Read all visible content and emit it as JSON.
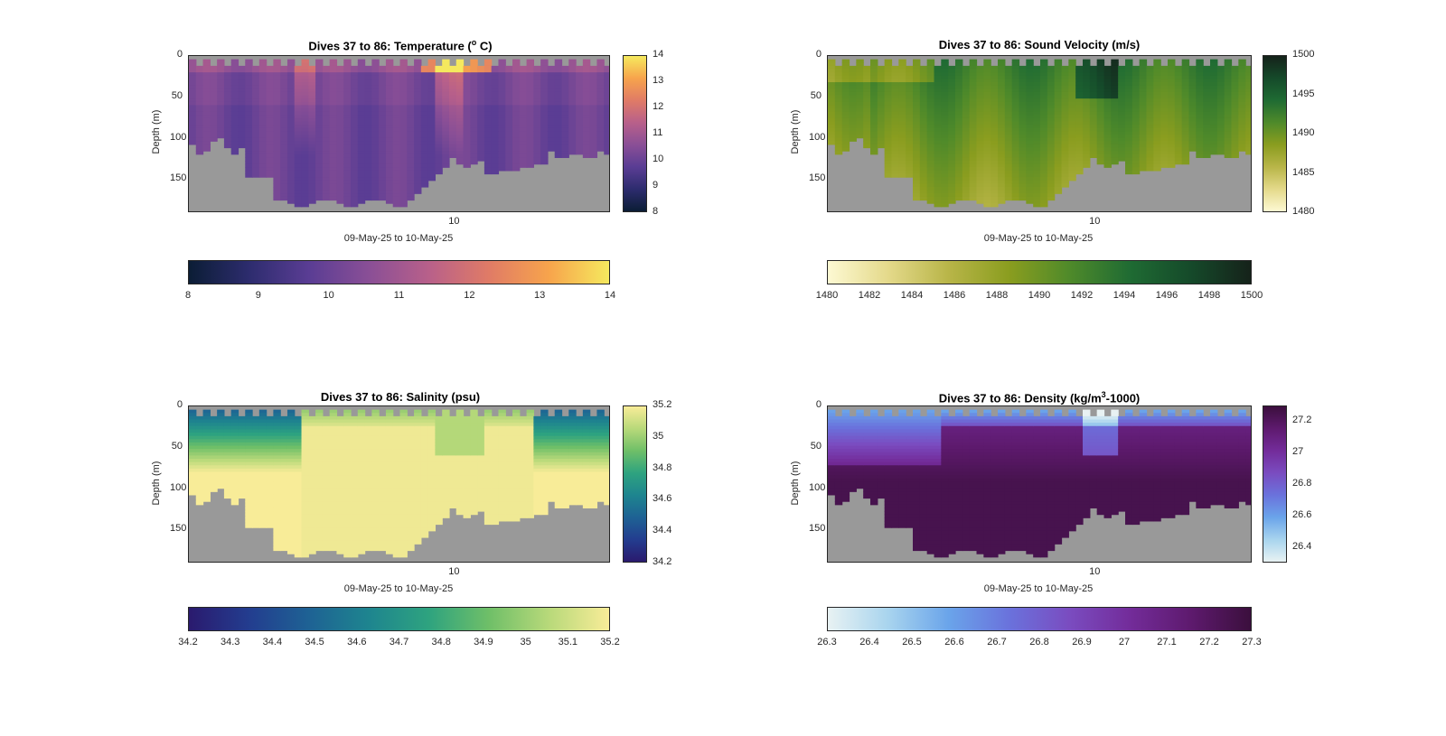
{
  "chart_data": [
    {
      "type": "heatmap",
      "title_prefix": "Dives 37 to 86: Temperature (",
      "title_sup": "o",
      "title_suffix": " C)",
      "ylabel": "Depth (m)",
      "xlabel": "09-May-25 to 10-May-25",
      "x_ticks": [
        "10"
      ],
      "y_ticks": [
        "0",
        "50",
        "100",
        "150"
      ],
      "ylim": [
        0,
        190
      ],
      "variable": "temperature",
      "clim": [
        8,
        14
      ],
      "colormap": [
        "#0b1d35",
        "#2d2c6e",
        "#5a3d94",
        "#8a4f96",
        "#b8608a",
        "#e07b66",
        "#f7a44c",
        "#f5e95e"
      ],
      "background": "#999999",
      "vertical_colorbar_ticks": [
        "14",
        "13",
        "12",
        "11",
        "10",
        "9",
        "8"
      ],
      "horizontal_colorbar_ticks": [
        "8",
        "9",
        "10",
        "11",
        "12",
        "13",
        "14"
      ]
    },
    {
      "type": "heatmap",
      "title_prefix": "Dives 37 to 86: Sound Velocity (m/s)",
      "title_sup": "",
      "title_suffix": "",
      "ylabel": "Depth (m)",
      "xlabel": "09-May-25 to 10-May-25",
      "x_ticks": [
        "10"
      ],
      "y_ticks": [
        "0",
        "50",
        "100",
        "150"
      ],
      "ylim": [
        0,
        190
      ],
      "variable": "sound_velocity",
      "clim": [
        1480,
        1500
      ],
      "colormap": [
        "#fdf9d3",
        "#e4d98a",
        "#b8b548",
        "#8a9d1f",
        "#4f8a2a",
        "#1f6b33",
        "#154a2a",
        "#15221a"
      ],
      "background": "#999999",
      "vertical_colorbar_ticks": [
        "1500",
        "1495",
        "1490",
        "1485",
        "1480"
      ],
      "horizontal_colorbar_ticks": [
        "1480",
        "1482",
        "1484",
        "1486",
        "1488",
        "1490",
        "1492",
        "1494",
        "1496",
        "1498",
        "1500"
      ]
    },
    {
      "type": "heatmap",
      "title_prefix": "Dives 37 to 86: Salinity (psu)",
      "title_sup": "",
      "title_suffix": "",
      "ylabel": "Depth (m)",
      "xlabel": "09-May-25 to 10-May-25",
      "x_ticks": [
        "10"
      ],
      "y_ticks": [
        "0",
        "50",
        "100",
        "150"
      ],
      "ylim": [
        0,
        190
      ],
      "variable": "salinity",
      "clim": [
        34.2,
        35.2
      ],
      "colormap": [
        "#2a1a6e",
        "#233d8f",
        "#1e6294",
        "#1e858f",
        "#2ea37f",
        "#6fbf68",
        "#b8d97a",
        "#f8ec98"
      ],
      "background": "#999999",
      "vertical_colorbar_ticks": [
        "35.2",
        "35",
        "34.8",
        "34.6",
        "34.4",
        "34.2"
      ],
      "horizontal_colorbar_ticks": [
        "34.2",
        "34.3",
        "34.4",
        "34.5",
        "34.6",
        "34.7",
        "34.8",
        "34.9",
        "35",
        "35.1",
        "35.2"
      ]
    },
    {
      "type": "heatmap",
      "title_prefix": "Dives 37 to 86: Density (kg/m",
      "title_sup": "3",
      "title_suffix": "-1000)",
      "ylabel": "Depth (m)",
      "xlabel": "09-May-25 to 10-May-25",
      "x_ticks": [
        "10"
      ],
      "y_ticks": [
        "0",
        "50",
        "100",
        "150"
      ],
      "ylim": [
        0,
        190
      ],
      "variable": "density",
      "clim": [
        26.3,
        27.3
      ],
      "colormap": [
        "#e8f2f3",
        "#a8d4ee",
        "#6aa4ea",
        "#6a72dc",
        "#7a4cc0",
        "#732c9a",
        "#5e1a6e",
        "#3b0f3d"
      ],
      "background": "#999999",
      "vertical_colorbar_ticks": [
        "27.2",
        "27",
        "26.8",
        "26.6",
        "26.4"
      ],
      "horizontal_colorbar_ticks": [
        "26.3",
        "26.4",
        "26.5",
        "26.6",
        "26.7",
        "26.8",
        "26.9",
        "27",
        "27.1",
        "27.2",
        "27.3"
      ]
    }
  ]
}
